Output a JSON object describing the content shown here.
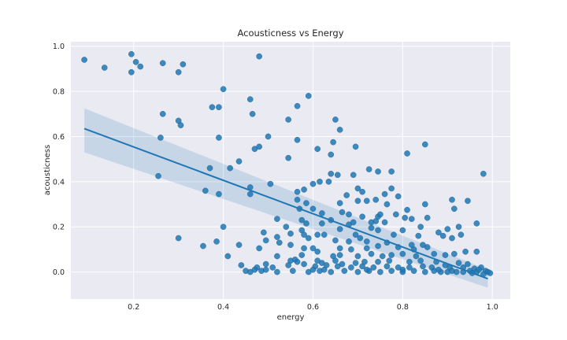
{
  "chart_data": {
    "type": "scatter",
    "title": "Acousticness vs Energy",
    "xlabel": "energy",
    "ylabel": "acousticness",
    "xlim": [
      0.06,
      1.04
    ],
    "ylim": [
      -0.12,
      1.02
    ],
    "x_ticks": [
      0.2,
      0.4,
      0.6,
      0.8,
      1.0
    ],
    "x_tick_labels": [
      "0.2",
      "0.4",
      "0.6",
      "0.8",
      "1.0"
    ],
    "y_ticks": [
      0.0,
      0.2,
      0.4,
      0.6,
      0.8,
      1.0
    ],
    "y_tick_labels": [
      "0.0",
      "0.2",
      "0.4",
      "0.6",
      "0.8",
      "1.0"
    ],
    "grid": true,
    "background": "#eaeaf2",
    "point_color": "#1f77b4",
    "regression": {
      "x": [
        0.09,
        0.99
      ],
      "y": [
        0.635,
        -0.03
      ],
      "ci_upper": [
        0.725,
        0.01
      ],
      "ci_lower": [
        0.53,
        -0.07
      ],
      "color": "#1f77b4"
    },
    "points": [
      [
        0.09,
        0.94
      ],
      [
        0.135,
        0.905
      ],
      [
        0.195,
        0.965
      ],
      [
        0.205,
        0.93
      ],
      [
        0.215,
        0.91
      ],
      [
        0.195,
        0.885
      ],
      [
        0.265,
        0.925
      ],
      [
        0.3,
        0.885
      ],
      [
        0.31,
        0.92
      ],
      [
        0.48,
        0.955
      ],
      [
        0.4,
        0.81
      ],
      [
        0.59,
        0.78
      ],
      [
        0.375,
        0.73
      ],
      [
        0.39,
        0.73
      ],
      [
        0.46,
        0.765
      ],
      [
        0.465,
        0.7
      ],
      [
        0.565,
        0.735
      ],
      [
        0.265,
        0.7
      ],
      [
        0.3,
        0.67
      ],
      [
        0.305,
        0.65
      ],
      [
        0.545,
        0.675
      ],
      [
        0.65,
        0.675
      ],
      [
        0.66,
        0.63
      ],
      [
        0.26,
        0.595
      ],
      [
        0.39,
        0.595
      ],
      [
        0.5,
        0.6
      ],
      [
        0.565,
        0.585
      ],
      [
        0.645,
        0.575
      ],
      [
        0.695,
        0.555
      ],
      [
        0.48,
        0.555
      ],
      [
        0.47,
        0.545
      ],
      [
        0.61,
        0.545
      ],
      [
        0.81,
        0.525
      ],
      [
        0.85,
        0.565
      ],
      [
        0.545,
        0.505
      ],
      [
        0.64,
        0.52
      ],
      [
        0.435,
        0.49
      ],
      [
        0.37,
        0.46
      ],
      [
        0.415,
        0.46
      ],
      [
        0.255,
        0.425
      ],
      [
        0.64,
        0.435
      ],
      [
        0.655,
        0.43
      ],
      [
        0.69,
        0.43
      ],
      [
        0.725,
        0.455
      ],
      [
        0.745,
        0.445
      ],
      [
        0.775,
        0.445
      ],
      [
        0.98,
        0.435
      ],
      [
        0.505,
        0.39
      ],
      [
        0.6,
        0.39
      ],
      [
        0.615,
        0.4
      ],
      [
        0.635,
        0.4
      ],
      [
        0.46,
        0.375
      ],
      [
        0.7,
        0.37
      ],
      [
        0.71,
        0.355
      ],
      [
        0.775,
        0.37
      ],
      [
        0.74,
        0.32
      ],
      [
        0.76,
        0.345
      ],
      [
        0.36,
        0.36
      ],
      [
        0.39,
        0.345
      ],
      [
        0.565,
        0.355
      ],
      [
        0.58,
        0.365
      ],
      [
        0.46,
        0.345
      ],
      [
        0.675,
        0.34
      ],
      [
        0.7,
        0.315
      ],
      [
        0.72,
        0.315
      ],
      [
        0.765,
        0.3
      ],
      [
        0.79,
        0.335
      ],
      [
        0.85,
        0.3
      ],
      [
        0.91,
        0.32
      ],
      [
        0.945,
        0.315
      ],
      [
        0.565,
        0.32
      ],
      [
        0.585,
        0.305
      ],
      [
        0.6,
        0.28
      ],
      [
        0.66,
        0.305
      ],
      [
        0.665,
        0.265
      ],
      [
        0.68,
        0.255
      ],
      [
        0.71,
        0.245
      ],
      [
        0.745,
        0.245
      ],
      [
        0.75,
        0.255
      ],
      [
        0.81,
        0.275
      ],
      [
        0.915,
        0.28
      ],
      [
        0.57,
        0.28
      ],
      [
        0.62,
        0.26
      ],
      [
        0.64,
        0.23
      ],
      [
        0.73,
        0.22
      ],
      [
        0.74,
        0.225
      ],
      [
        0.76,
        0.22
      ],
      [
        0.785,
        0.255
      ],
      [
        0.805,
        0.24
      ],
      [
        0.82,
        0.235
      ],
      [
        0.855,
        0.24
      ],
      [
        0.52,
        0.235
      ],
      [
        0.575,
        0.23
      ],
      [
        0.585,
        0.215
      ],
      [
        0.62,
        0.215
      ],
      [
        0.68,
        0.21
      ],
      [
        0.69,
        0.22
      ],
      [
        0.965,
        0.215
      ],
      [
        0.4,
        0.2
      ],
      [
        0.54,
        0.2
      ],
      [
        0.575,
        0.185
      ],
      [
        0.58,
        0.165
      ],
      [
        0.61,
        0.165
      ],
      [
        0.66,
        0.19
      ],
      [
        0.73,
        0.195
      ],
      [
        0.745,
        0.185
      ],
      [
        0.8,
        0.185
      ],
      [
        0.84,
        0.2
      ],
      [
        0.88,
        0.175
      ],
      [
        0.9,
        0.19
      ],
      [
        0.925,
        0.2
      ],
      [
        0.49,
        0.175
      ],
      [
        0.52,
        0.155
      ],
      [
        0.55,
        0.17
      ],
      [
        0.625,
        0.165
      ],
      [
        0.695,
        0.165
      ],
      [
        0.705,
        0.15
      ],
      [
        0.78,
        0.165
      ],
      [
        0.835,
        0.16
      ],
      [
        0.89,
        0.16
      ],
      [
        0.93,
        0.165
      ],
      [
        0.3,
        0.15
      ],
      [
        0.385,
        0.135
      ],
      [
        0.435,
        0.12
      ],
      [
        0.495,
        0.14
      ],
      [
        0.525,
        0.13
      ],
      [
        0.59,
        0.15
      ],
      [
        0.65,
        0.14
      ],
      [
        0.68,
        0.135
      ],
      [
        0.72,
        0.135
      ],
      [
        0.765,
        0.13
      ],
      [
        0.82,
        0.12
      ],
      [
        0.845,
        0.12
      ],
      [
        0.91,
        0.15
      ],
      [
        0.355,
        0.115
      ],
      [
        0.48,
        0.105
      ],
      [
        0.55,
        0.12
      ],
      [
        0.58,
        0.105
      ],
      [
        0.6,
        0.105
      ],
      [
        0.66,
        0.105
      ],
      [
        0.685,
        0.1
      ],
      [
        0.72,
        0.105
      ],
      [
        0.745,
        0.115
      ],
      [
        0.79,
        0.11
      ],
      [
        0.825,
        0.1
      ],
      [
        0.855,
        0.11
      ],
      [
        0.94,
        0.09
      ],
      [
        0.965,
        0.09
      ],
      [
        0.41,
        0.07
      ],
      [
        0.52,
        0.07
      ],
      [
        0.575,
        0.075
      ],
      [
        0.61,
        0.09
      ],
      [
        0.645,
        0.07
      ],
      [
        0.66,
        0.075
      ],
      [
        0.7,
        0.07
      ],
      [
        0.73,
        0.08
      ],
      [
        0.755,
        0.07
      ],
      [
        0.775,
        0.075
      ],
      [
        0.8,
        0.08
      ],
      [
        0.83,
        0.07
      ],
      [
        0.87,
        0.08
      ],
      [
        0.895,
        0.075
      ],
      [
        0.915,
        0.08
      ],
      [
        0.55,
        0.05
      ],
      [
        0.56,
        0.055
      ],
      [
        0.565,
        0.045
      ],
      [
        0.61,
        0.05
      ],
      [
        0.62,
        0.04
      ],
      [
        0.65,
        0.05
      ],
      [
        0.665,
        0.035
      ],
      [
        0.695,
        0.04
      ],
      [
        0.715,
        0.045
      ],
      [
        0.745,
        0.045
      ],
      [
        0.77,
        0.05
      ],
      [
        0.815,
        0.045
      ],
      [
        0.84,
        0.05
      ],
      [
        0.875,
        0.045
      ],
      [
        0.895,
        0.03
      ],
      [
        0.925,
        0.04
      ],
      [
        0.945,
        0.035
      ],
      [
        0.44,
        0.03
      ],
      [
        0.475,
        0.02
      ],
      [
        0.495,
        0.035
      ],
      [
        0.51,
        0.02
      ],
      [
        0.545,
        0.03
      ],
      [
        0.58,
        0.035
      ],
      [
        0.605,
        0.025
      ],
      [
        0.63,
        0.03
      ],
      [
        0.655,
        0.025
      ],
      [
        0.685,
        0.02
      ],
      [
        0.71,
        0.025
      ],
      [
        0.735,
        0.02
      ],
      [
        0.765,
        0.025
      ],
      [
        0.79,
        0.02
      ],
      [
        0.815,
        0.02
      ],
      [
        0.845,
        0.025
      ],
      [
        0.865,
        0.02
      ],
      [
        0.905,
        0.02
      ],
      [
        0.935,
        0.02
      ],
      [
        0.96,
        0.015
      ],
      [
        0.975,
        0.02
      ],
      [
        0.45,
        0.005
      ],
      [
        0.46,
        0.0
      ],
      [
        0.485,
        0.005
      ],
      [
        0.52,
        0.0
      ],
      [
        0.555,
        0.005
      ],
      [
        0.59,
        0.0
      ],
      [
        0.615,
        0.005
      ],
      [
        0.64,
        0.0
      ],
      [
        0.67,
        0.005
      ],
      [
        0.7,
        0.0
      ],
      [
        0.725,
        0.005
      ],
      [
        0.75,
        0.0
      ],
      [
        0.775,
        0.005
      ],
      [
        0.8,
        0.0
      ],
      [
        0.825,
        0.005
      ],
      [
        0.85,
        0.0
      ],
      [
        0.87,
        0.005
      ],
      [
        0.885,
        0.0
      ],
      [
        0.9,
        0.0
      ],
      [
        0.91,
        0.005
      ],
      [
        0.92,
        0.0
      ],
      [
        0.935,
        0.0
      ],
      [
        0.95,
        0.005
      ],
      [
        0.965,
        0.0
      ],
      [
        0.985,
        0.005
      ],
      [
        0.99,
        0.0
      ],
      [
        0.47,
        0.01
      ],
      [
        0.6,
        0.01
      ],
      [
        0.72,
        0.01
      ],
      [
        0.8,
        0.01
      ],
      [
        0.88,
        0.01
      ],
      [
        0.97,
        0.01
      ],
      [
        0.995,
        -0.005
      ],
      [
        0.98,
        -0.01
      ],
      [
        0.955,
        -0.005
      ],
      [
        0.495,
        0.01
      ],
      [
        0.625,
        0.01
      ]
    ]
  }
}
